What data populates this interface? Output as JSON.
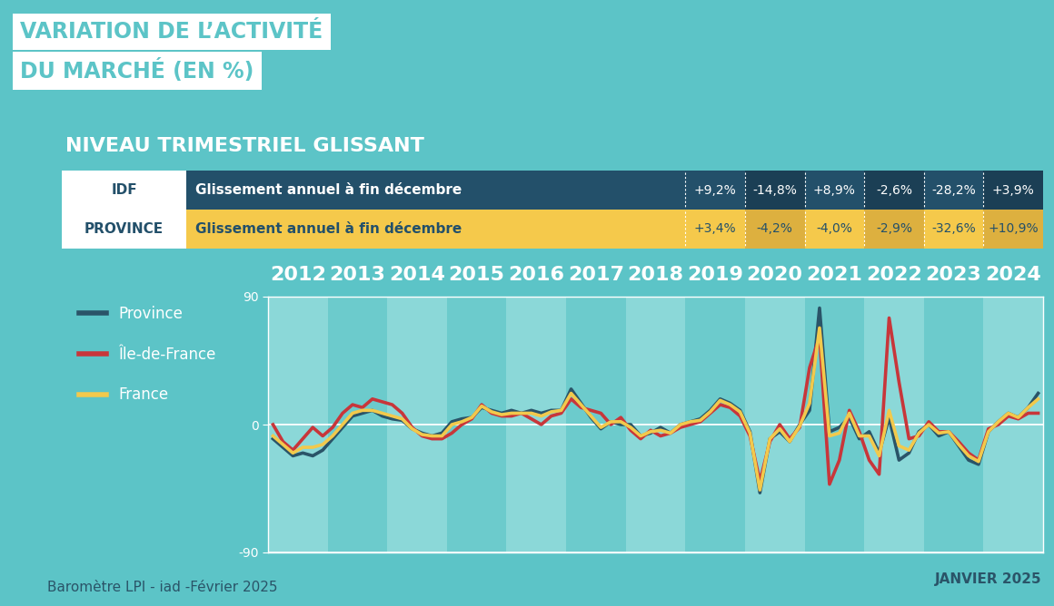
{
  "chart_data": {
    "type": "line",
    "title": "VARIATION DE L’ACTIVITÉ\nDU MARCHÉ (EN %)",
    "subtitle": "NIVEAU TRIMESTRIEL GLISSANT",
    "source": "Baromètre LPI - iad -Février 2025",
    "date_label": "JANVIER 2025",
    "table": {
      "years": [
        "2019",
        "2020",
        "2021",
        "2022",
        "2023",
        "2024"
      ],
      "rows": [
        {
          "name": "IDF",
          "label": "Glissement annuel à fin décembre",
          "color": "#23506a",
          "values": [
            9.2,
            -14.8,
            8.9,
            -2.6,
            -28.2,
            3.9
          ],
          "value_labels": [
            "+9,2%",
            "-14,8%",
            "+8,9%",
            "-2,6%",
            "-28,2%",
            "+3,9%"
          ]
        },
        {
          "name": "PROVINCE",
          "label": "Glissement annuel à fin décembre",
          "color": "#f5c94b",
          "values": [
            3.4,
            -4.2,
            -4.0,
            -2.9,
            -32.6,
            10.9
          ],
          "value_labels": [
            "+3,4%",
            "-4,2%",
            "-4,0%",
            "-2,9%",
            "-32,6%",
            "+10,9%"
          ]
        }
      ]
    },
    "x": [
      2012.083,
      2012.25,
      2012.417,
      2012.583,
      2012.75,
      2012.917,
      2013.083,
      2013.25,
      2013.417,
      2013.583,
      2013.75,
      2013.917,
      2014.083,
      2014.25,
      2014.417,
      2014.583,
      2014.75,
      2014.917,
      2015.083,
      2015.25,
      2015.417,
      2015.583,
      2015.75,
      2015.917,
      2016.083,
      2016.25,
      2016.417,
      2016.583,
      2016.75,
      2016.917,
      2017.083,
      2017.25,
      2017.417,
      2017.583,
      2017.75,
      2017.917,
      2018.083,
      2018.25,
      2018.417,
      2018.583,
      2018.75,
      2018.917,
      2019.083,
      2019.25,
      2019.417,
      2019.583,
      2019.75,
      2019.917,
      2020.083,
      2020.25,
      2020.417,
      2020.583,
      2020.75,
      2020.917,
      2021.083,
      2021.25,
      2021.417,
      2021.583,
      2021.75,
      2021.917,
      2022.083,
      2022.25,
      2022.417,
      2022.583,
      2022.75,
      2022.917,
      2023.083,
      2023.25,
      2023.417,
      2023.583,
      2023.75,
      2023.917,
      2024.083,
      2024.25,
      2024.417,
      2024.583,
      2024.75,
      2024.917
    ],
    "series": [
      {
        "name": "Province",
        "color": "#2a5468",
        "values": [
          -10,
          -16,
          -22,
          -20,
          -22,
          -18,
          -10,
          -2,
          6,
          8,
          10,
          6,
          4,
          3,
          -3,
          -6,
          -8,
          -6,
          2,
          4,
          5,
          12,
          10,
          8,
          10,
          8,
          10,
          8,
          10,
          10,
          25,
          15,
          5,
          -3,
          2,
          0,
          0,
          -8,
          -6,
          -2,
          -6,
          0,
          2,
          4,
          10,
          18,
          15,
          10,
          -5,
          -48,
          -10,
          -5,
          -12,
          0,
          10,
          82,
          -5,
          -2,
          5,
          -10,
          -5,
          -20,
          5,
          -25,
          -20,
          -5,
          0,
          -8,
          -5,
          -15,
          -25,
          -28,
          -5,
          2,
          8,
          5,
          12,
          22
        ]
      },
      {
        "name": "Île-de-France",
        "color": "#c8363a",
        "values": [
          0,
          -12,
          -18,
          -10,
          -2,
          -8,
          -2,
          8,
          14,
          12,
          18,
          16,
          14,
          8,
          -2,
          -8,
          -10,
          -10,
          -6,
          0,
          4,
          14,
          8,
          6,
          6,
          8,
          4,
          0,
          6,
          8,
          18,
          12,
          10,
          8,
          0,
          5,
          -4,
          -10,
          -4,
          -8,
          -6,
          -2,
          0,
          2,
          8,
          14,
          12,
          6,
          -8,
          -40,
          -12,
          0,
          -10,
          -2,
          40,
          62,
          -42,
          -25,
          10,
          -5,
          -25,
          -35,
          75,
          30,
          -10,
          -8,
          2,
          -5,
          -5,
          -12,
          -20,
          -25,
          -3,
          0,
          6,
          4,
          8,
          8
        ]
      },
      {
        "name": "France",
        "color": "#f2c94c",
        "values": [
          -8,
          -14,
          -20,
          -16,
          -16,
          -14,
          -8,
          0,
          8,
          10,
          10,
          8,
          6,
          4,
          -3,
          -7,
          -8,
          -8,
          0,
          2,
          5,
          13,
          9,
          7,
          8,
          8,
          8,
          6,
          9,
          10,
          22,
          14,
          6,
          -2,
          2,
          2,
          -2,
          -8,
          -5,
          -4,
          -6,
          0,
          2,
          3,
          9,
          17,
          14,
          9,
          -6,
          -46,
          -10,
          -3,
          -12,
          -1,
          15,
          68,
          -8,
          -6,
          8,
          -8,
          -8,
          -22,
          10,
          -15,
          -18,
          -6,
          0,
          -6,
          -5,
          -14,
          -22,
          -26,
          -5,
          2,
          8,
          5,
          12,
          18
        ]
      }
    ],
    "xlim": [
      2012,
      2025
    ],
    "xticks": [
      {
        "value": 2012.5,
        "label": "2012"
      },
      {
        "value": 2013.5,
        "label": "2013"
      },
      {
        "value": 2014.5,
        "label": "2014"
      },
      {
        "value": 2015.5,
        "label": "2015"
      },
      {
        "value": 2016.5,
        "label": "2016"
      },
      {
        "value": 2017.5,
        "label": "2017"
      },
      {
        "value": 2018.5,
        "label": "2018"
      },
      {
        "value": 2019.5,
        "label": "2019"
      },
      {
        "value": 2020.5,
        "label": "2020"
      },
      {
        "value": 2021.5,
        "label": "2021"
      },
      {
        "value": 2022.5,
        "label": "2022"
      },
      {
        "value": 2023.5,
        "label": "2023"
      },
      {
        "value": 2024.5,
        "label": "2024"
      }
    ],
    "ylim": [
      -90,
      90
    ],
    "yticks": [
      -90,
      0,
      90
    ],
    "grid": true,
    "legend": "upper left"
  }
}
